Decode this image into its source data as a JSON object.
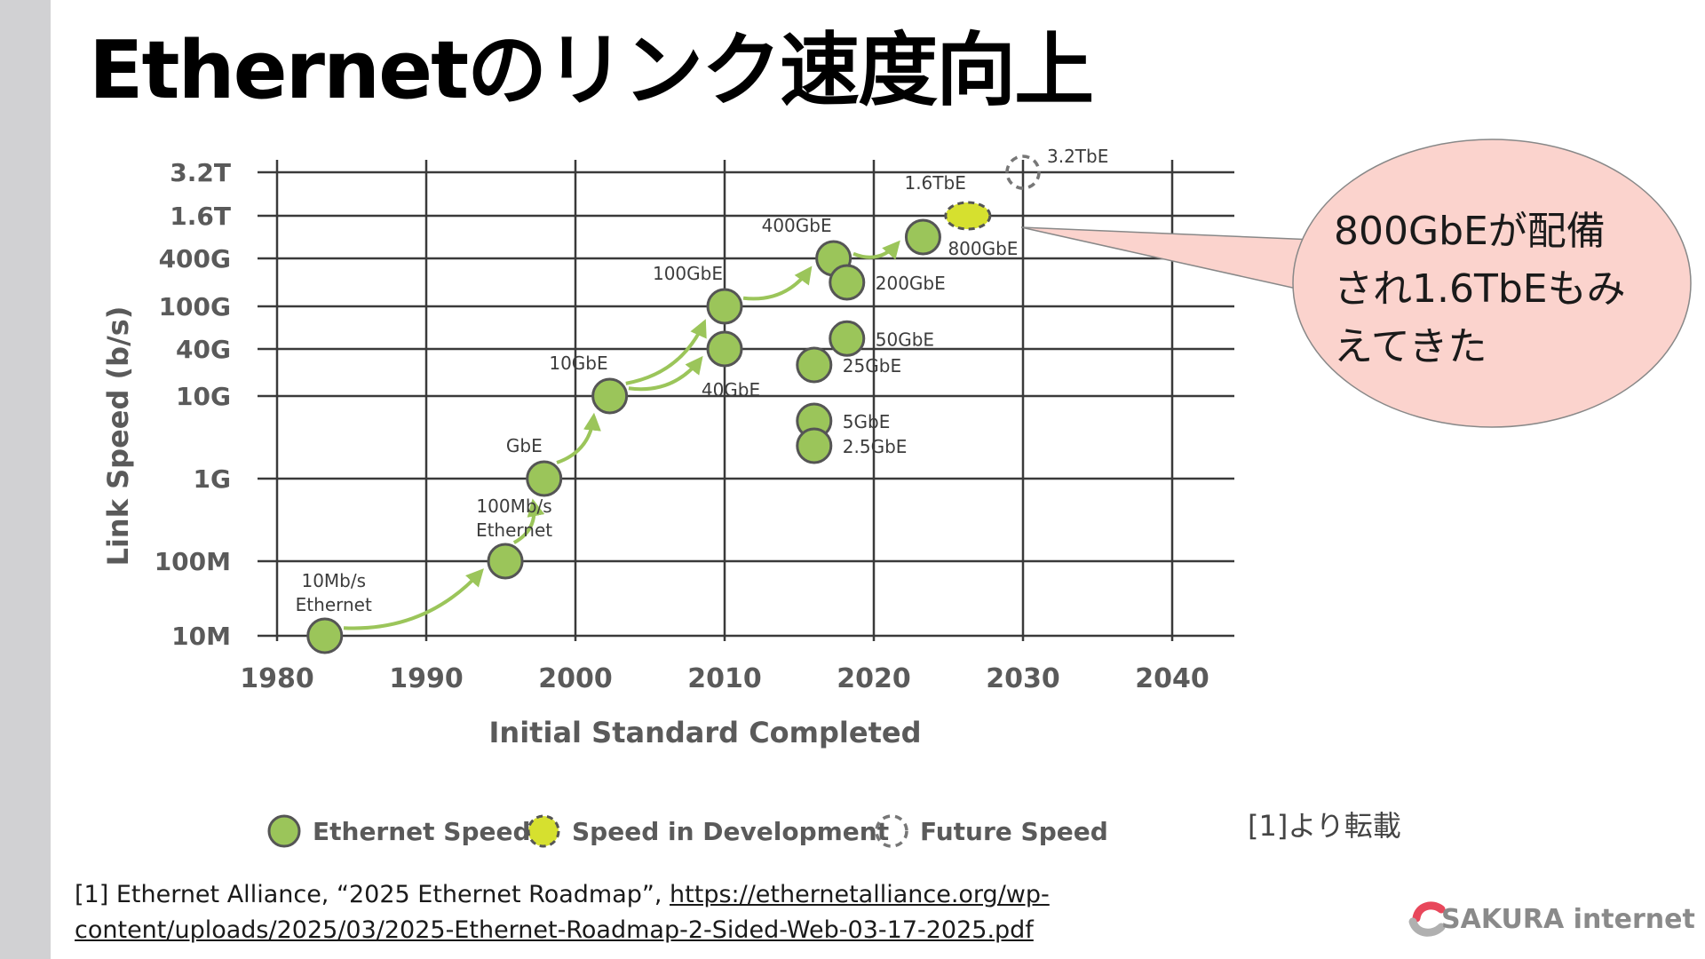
{
  "slide": {
    "title": "Ethernetのリンク速度向上",
    "source_note": "[1]より転載",
    "reference": {
      "prefix": "[1] Ethernet Alliance, “2025 Ethernet Roadmap”, ",
      "url_text": "https://ethernetalliance.org/wp-content/uploads/2025/03/2025-Ethernet-Roadmap-2-Sided-Web-03-17-2025.pdf"
    },
    "logo_text": "SAKURA internet"
  },
  "callout": {
    "lines": [
      "800GbEが配備",
      "され1.6TbEもみ",
      "えてきた"
    ],
    "fill": "#fbd3cd"
  },
  "chart_data": {
    "type": "scatter",
    "xlabel": "Initial Standard Completed",
    "ylabel": "Link Speed (b/s)",
    "xlim": [
      1980,
      2040
    ],
    "x_ticks": [
      1980,
      1990,
      2000,
      2010,
      2020,
      2030,
      2040
    ],
    "y_ticks": [
      "10M",
      "100M",
      "1G",
      "10G",
      "40G",
      "100G",
      "400G",
      "1.6T",
      "3.2T"
    ],
    "y_tick_values_bps": [
      10000000,
      100000000,
      1000000000,
      10000000000,
      40000000000,
      100000000000,
      400000000000,
      1600000000000,
      3200000000000
    ],
    "grid": true,
    "legend_position": "bottom",
    "legend": [
      {
        "name": "Ethernet Speed",
        "style": "solid"
      },
      {
        "name": "Speed in Development",
        "style": "dev"
      },
      {
        "name": "Future Speed",
        "style": "future"
      }
    ],
    "colors": {
      "solid": "#9bc55a",
      "dev": "#d6e02f",
      "future": "#777777",
      "arrow": "#9bc55a",
      "grid": "#3a3a3a"
    },
    "points": [
      {
        "label": "10Mb/s\nEthernet",
        "x": 1983.2,
        "y": "10M",
        "style": "solid",
        "label_pos": "top-left"
      },
      {
        "label": "100Mb/s\nEthernet",
        "x": 1995.3,
        "y": "100M",
        "style": "solid",
        "label_pos": "top-left"
      },
      {
        "label": "GbE",
        "x": 1997.9,
        "y": "1G",
        "style": "solid",
        "label_pos": "top-left"
      },
      {
        "label": "10GbE",
        "x": 2002.3,
        "y": "10G",
        "style": "solid",
        "label_pos": "top-left"
      },
      {
        "label": "40GbE",
        "x": 2010.0,
        "y": "40G",
        "style": "solid",
        "label_pos": "bottom"
      },
      {
        "label": "100GbE",
        "x": 2010.0,
        "y": "100G",
        "style": "solid",
        "label_pos": "top-left"
      },
      {
        "label": "400GbE",
        "x": 2017.3,
        "y": "400G",
        "style": "solid",
        "label_pos": "top-left"
      },
      {
        "label": "200GbE",
        "x": 2018.2,
        "y": 200000000000,
        "style": "solid",
        "label_pos": "right"
      },
      {
        "label": "50GbE",
        "x": 2018.2,
        "y": 50000000000,
        "style": "solid",
        "label_pos": "right"
      },
      {
        "label": "25GbE",
        "x": 2016.0,
        "y": 25000000000,
        "style": "solid",
        "label_pos": "right"
      },
      {
        "label": "5GbE",
        "x": 2016.0,
        "y": 5000000000,
        "style": "solid",
        "label_pos": "right"
      },
      {
        "label": "2.5GbE",
        "x": 2016.0,
        "y": 2500000000,
        "style": "solid",
        "label_pos": "right"
      },
      {
        "label": "800GbE",
        "x": 2023.3,
        "y": 800000000000,
        "style": "solid",
        "label_pos": "bottom-right"
      },
      {
        "label": "1.6TbE",
        "x": 2026.3,
        "y": "1.6T",
        "style": "dev",
        "label_pos": "top-left"
      },
      {
        "label": "3.2TbE",
        "x": 2030.0,
        "y": "3.2T",
        "style": "future",
        "label_pos": "top-right"
      }
    ],
    "arrows": [
      {
        "from": "10Mb/s\nEthernet",
        "to": "100Mb/s\nEthernet"
      },
      {
        "from": "100Mb/s\nEthernet",
        "to": "GbE"
      },
      {
        "from": "GbE",
        "to": "10GbE"
      },
      {
        "from": "10GbE",
        "to": "100GbE"
      },
      {
        "from": "10GbE",
        "to": "40GbE"
      },
      {
        "from": "100GbE",
        "to": "400GbE"
      },
      {
        "from": "400GbE",
        "to": "800GbE"
      }
    ]
  }
}
